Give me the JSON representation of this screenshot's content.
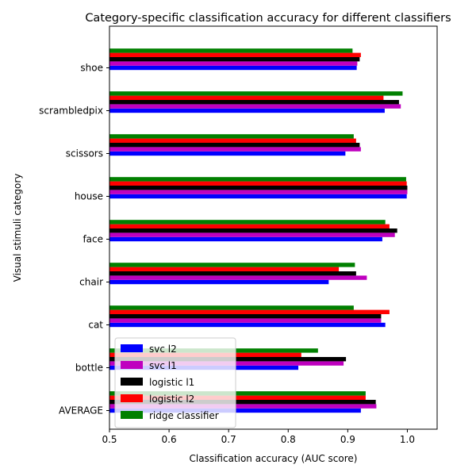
{
  "chart_data": {
    "type": "bar",
    "orientation": "horizontal",
    "title": "Category-specific classification accuracy for different classifiers",
    "xlabel": "Classification accuracy (AUC score)",
    "ylabel": "Visual stimuli category",
    "xlim": [
      0.5,
      1.05
    ],
    "xticks": [
      "0.5",
      "0.6",
      "0.7",
      "0.8",
      "0.9",
      "1.0"
    ],
    "categories": [
      "AVERAGE",
      "bottle",
      "cat",
      "chair",
      "face",
      "house",
      "scissors",
      "scrambledpix",
      "shoe"
    ],
    "series": [
      {
        "name": "svc l2",
        "color": "#0000ff",
        "values": [
          0.922,
          0.817,
          0.963,
          0.868,
          0.958,
          0.999,
          0.896,
          0.962,
          0.915
        ]
      },
      {
        "name": "svc l1",
        "color": "#bf00bf",
        "values": [
          0.948,
          0.893,
          0.956,
          0.932,
          0.979,
          1.0,
          0.922,
          0.989,
          0.916
        ]
      },
      {
        "name": "logistic l1",
        "color": "#000000",
        "values": [
          0.947,
          0.897,
          0.956,
          0.914,
          0.983,
          1.0,
          0.92,
          0.986,
          0.92
        ]
      },
      {
        "name": "logistic l2",
        "color": "#ff0000",
        "values": [
          0.93,
          0.822,
          0.97,
          0.885,
          0.97,
          0.999,
          0.914,
          0.96,
          0.922
        ]
      },
      {
        "name": "ridge classifier",
        "color": "#008000",
        "values": [
          0.93,
          0.85,
          0.91,
          0.912,
          0.963,
          0.998,
          0.91,
          0.992,
          0.908
        ]
      }
    ],
    "grid": false,
    "legend_position": "lower-left"
  }
}
